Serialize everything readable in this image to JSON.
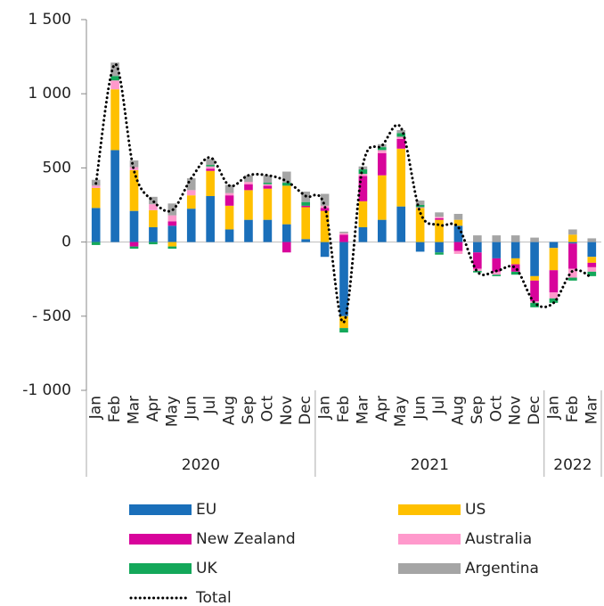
{
  "chart_data": {
    "type": "stacked-bar",
    "groups": [
      {
        "label": "2020",
        "categories": [
          "Jan",
          "Feb",
          "Mar",
          "Apr",
          "May",
          "Jun",
          "Jul",
          "Aug",
          "Sep",
          "Oct",
          "Nov",
          "Dec"
        ]
      },
      {
        "label": "2021",
        "categories": [
          "Jan",
          "Feb",
          "Mar",
          "Apr",
          "May",
          "Jun",
          "Jul",
          "Aug",
          "Sep",
          "Oct",
          "Nov",
          "Dec"
        ]
      },
      {
        "label": "2022",
        "categories": [
          "Jan",
          "Feb",
          "Mar"
        ]
      }
    ],
    "series": [
      {
        "name": "EU",
        "color": "#1a6fba",
        "values": [
          230,
          620,
          210,
          100,
          110,
          225,
          310,
          85,
          150,
          150,
          120,
          20,
          -100,
          -500,
          100,
          150,
          240,
          -65,
          -70,
          110,
          -70,
          -110,
          -110,
          -230,
          -40,
          -10,
          -100
        ]
      },
      {
        "name": "US",
        "color": "#ffc000",
        "values": [
          135,
          410,
          275,
          115,
          -30,
          90,
          170,
          160,
          200,
          210,
          260,
          215,
          210,
          -80,
          175,
          300,
          390,
          230,
          150,
          40,
          0,
          0,
          -40,
          -30,
          -150,
          50,
          -40
        ]
      },
      {
        "name": "New Zealand",
        "color": "#d8049b",
        "values": [
          0,
          0,
          -30,
          0,
          30,
          0,
          15,
          70,
          40,
          20,
          -70,
          10,
          20,
          50,
          170,
          150,
          65,
          0,
          10,
          -60,
          -110,
          -90,
          -50,
          -140,
          -150,
          -170,
          -30
        ]
      },
      {
        "name": "Australia",
        "color": "#ff99cc",
        "values": [
          15,
          60,
          20,
          40,
          40,
          35,
          15,
          15,
          15,
          10,
          0,
          0,
          15,
          10,
          15,
          20,
          15,
          5,
          10,
          -20,
          -15,
          -20,
          0,
          -10,
          -40,
          -60,
          -30
        ]
      },
      {
        "name": "UK",
        "color": "#14a85a",
        "values": [
          -20,
          30,
          -15,
          -15,
          -15,
          0,
          10,
          0,
          0,
          10,
          20,
          25,
          0,
          -30,
          30,
          20,
          25,
          15,
          -15,
          0,
          -10,
          -10,
          -20,
          -30,
          -30,
          -20,
          -30
        ]
      },
      {
        "name": "Argentina",
        "color": "#a5a5a5",
        "values": [
          40,
          90,
          45,
          50,
          80,
          80,
          40,
          55,
          45,
          50,
          75,
          70,
          80,
          10,
          20,
          20,
          20,
          30,
          30,
          40,
          45,
          45,
          45,
          30,
          0,
          35,
          25
        ]
      }
    ],
    "line": {
      "name": "Total",
      "color": "#000000",
      "values": [
        395,
        1200,
        480,
        276,
        215,
        430,
        570,
        380,
        450,
        450,
        410,
        310,
        240,
        -540,
        520,
        650,
        770,
        200,
        115,
        100,
        -200,
        -195,
        -175,
        -410,
        -410,
        -195,
        -240
      ]
    },
    "ylim": [
      -1000,
      1500
    ],
    "yticks": [
      {
        "value": -1000,
        "label": "-1 000"
      },
      {
        "value": -500,
        "label": "- 500"
      },
      0,
      500,
      {
        "value": 1000,
        "label": "1 000"
      },
      {
        "value": 1500,
        "label": "1 500"
      }
    ]
  }
}
